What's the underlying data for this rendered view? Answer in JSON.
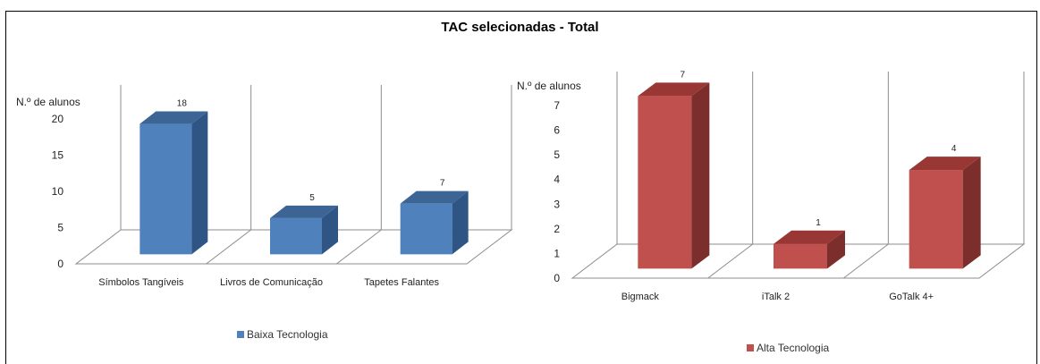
{
  "title": "TAC selecionadas - Total",
  "chart_data": [
    {
      "type": "bar",
      "ylabel": "N.º de alunos",
      "categories": [
        "Símbolos Tangíveis",
        "Livros de Comunicação",
        "Tapetes Falantes"
      ],
      "series": [
        {
          "name": "Baixa Tecnologia",
          "values": [
            18,
            5,
            7
          ]
        }
      ],
      "yticks": [
        0,
        5,
        10,
        15,
        20
      ],
      "ylim": [
        0,
        20
      ],
      "colors": {
        "front": "#4F81BD",
        "side": "#2E5584",
        "top": "#3C6494"
      },
      "legend_position": "bottom-left"
    },
    {
      "type": "bar",
      "ylabel": "N.º de alunos",
      "categories": [
        "Bigmack",
        "iTalk 2",
        "GoTalk 4+"
      ],
      "series": [
        {
          "name": "Alta Tecnologia",
          "values": [
            7,
            1,
            4
          ]
        }
      ],
      "yticks": [
        0,
        1,
        2,
        3,
        4,
        5,
        6,
        7
      ],
      "ylim": [
        0,
        7
      ],
      "colors": {
        "front": "#C0504D",
        "side": "#7B2E2C",
        "top": "#993735"
      },
      "legend_position": "bottom"
    }
  ]
}
